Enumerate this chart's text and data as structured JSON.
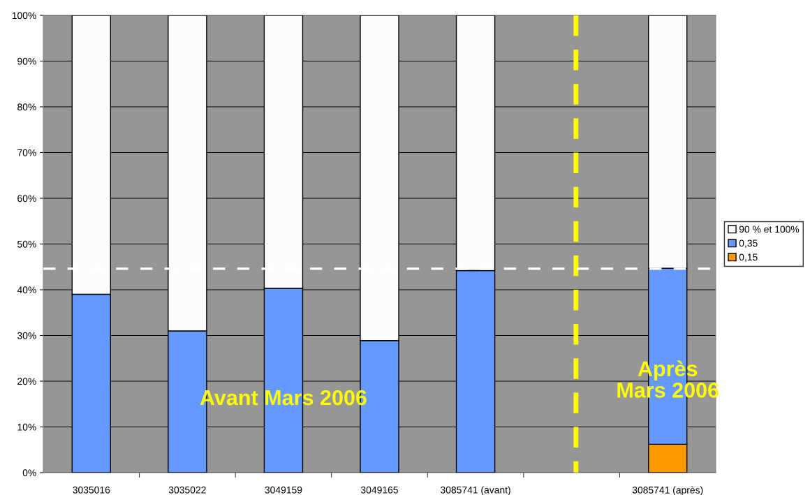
{
  "chart_data": {
    "type": "bar",
    "stacked": true,
    "categories": [
      "3035016",
      "3035022",
      "3049159",
      "3049165",
      "3085741 (avant)",
      null,
      "3085741 (après)"
    ],
    "series": [
      {
        "name": "0,15",
        "color": "#ff9900",
        "values": [
          null,
          null,
          null,
          null,
          null,
          null,
          6.2
        ]
      },
      {
        "name": "0,35",
        "color": "#6699ff",
        "values": [
          39.0,
          31.0,
          40.3,
          28.9,
          44.2,
          null,
          38.5
        ]
      },
      {
        "name": "90 % et 100%",
        "color": "#fcfcfc",
        "values": [
          61.0,
          69.0,
          59.7,
          71.1,
          55.8,
          null,
          55.3
        ]
      }
    ],
    "ylim": [
      0,
      100
    ],
    "yticks": [
      {
        "value": 0,
        "label": "0%"
      },
      {
        "value": 10,
        "label": "10%"
      },
      {
        "value": 20,
        "label": "20%"
      },
      {
        "value": 30,
        "label": "30%"
      },
      {
        "value": 40,
        "label": "40%"
      },
      {
        "value": 50,
        "label": "50%"
      },
      {
        "value": 60,
        "label": "60%"
      },
      {
        "value": 70,
        "label": "70%"
      },
      {
        "value": 80,
        "label": "80%"
      },
      {
        "value": 90,
        "label": "90%"
      },
      {
        "value": 100,
        "label": "100%"
      }
    ],
    "grid": "y",
    "legend": "right",
    "ref_lines": [
      {
        "axis": "y",
        "value": 44.6,
        "color": "#ffffff",
        "line_style": "dashed"
      }
    ],
    "annotations": [
      "Avant Mars 2006",
      "Après\nMars 2006"
    ]
  }
}
